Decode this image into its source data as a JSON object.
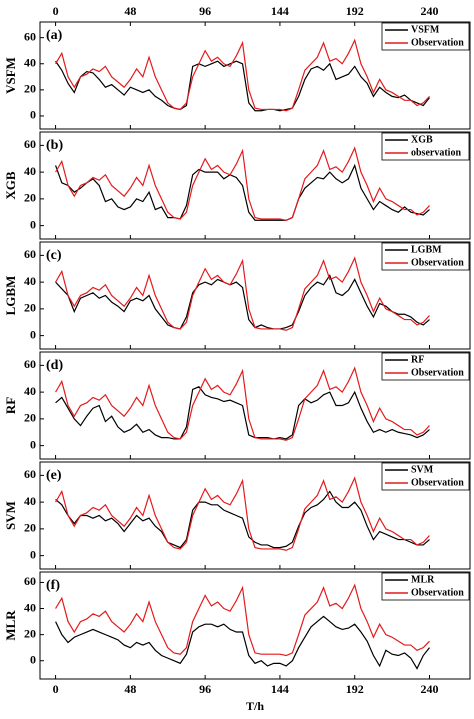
{
  "chart_data": [
    {
      "type": "line",
      "label": "(a)",
      "ylabel": "VSFM",
      "xlim": [
        -10,
        266
      ],
      "xticks": [
        0,
        48,
        96,
        144,
        192,
        240
      ],
      "ylim": [
        -10,
        72
      ],
      "yticks": [
        0,
        20,
        40,
        60
      ],
      "x": [
        0,
        4,
        8,
        12,
        16,
        20,
        24,
        28,
        32,
        36,
        40,
        44,
        48,
        52,
        56,
        60,
        64,
        68,
        72,
        76,
        80,
        84,
        88,
        92,
        96,
        100,
        104,
        108,
        112,
        116,
        120,
        124,
        128,
        132,
        136,
        140,
        144,
        148,
        152,
        156,
        160,
        164,
        168,
        172,
        176,
        180,
        184,
        188,
        192,
        196,
        200,
        204,
        208,
        212,
        216,
        220,
        224,
        228,
        232,
        236,
        240
      ],
      "series": [
        {
          "name": "VSFM",
          "color": "#000000",
          "values": [
            42,
            35,
            25,
            18,
            30,
            34,
            33,
            28,
            22,
            24,
            20,
            16,
            22,
            20,
            18,
            20,
            15,
            12,
            8,
            6,
            5,
            8,
            38,
            40,
            38,
            40,
            42,
            38,
            40,
            42,
            40,
            10,
            4,
            4,
            5,
            5,
            4,
            5,
            6,
            15,
            28,
            36,
            38,
            35,
            40,
            28,
            30,
            32,
            38,
            30,
            25,
            15,
            22,
            18,
            15,
            14,
            16,
            12,
            10,
            8,
            14
          ]
        },
        {
          "name": "Observation",
          "color": "#e41a1c",
          "values": [
            40,
            48,
            30,
            22,
            30,
            32,
            36,
            34,
            38,
            30,
            26,
            22,
            28,
            36,
            30,
            45,
            30,
            20,
            10,
            6,
            5,
            10,
            30,
            40,
            50,
            42,
            45,
            40,
            38,
            46,
            56,
            20,
            6,
            5,
            5,
            5,
            5,
            4,
            6,
            20,
            35,
            40,
            45,
            56,
            42,
            44,
            40,
            48,
            58,
            40,
            30,
            18,
            28,
            20,
            18,
            15,
            12,
            12,
            8,
            10,
            15
          ]
        }
      ]
    },
    {
      "type": "line",
      "label": "(b)",
      "ylabel": "XGB",
      "xlim": [
        -10,
        266
      ],
      "xticks": [
        0,
        48,
        96,
        144,
        192,
        240
      ],
      "ylim": [
        -10,
        70
      ],
      "yticks": [
        0,
        20,
        40,
        60
      ],
      "x": [
        0,
        4,
        8,
        12,
        16,
        20,
        24,
        28,
        32,
        36,
        40,
        44,
        48,
        52,
        56,
        60,
        64,
        68,
        72,
        76,
        80,
        84,
        88,
        92,
        96,
        100,
        104,
        108,
        112,
        116,
        120,
        124,
        128,
        132,
        136,
        140,
        144,
        148,
        152,
        156,
        160,
        164,
        168,
        172,
        176,
        180,
        184,
        188,
        192,
        196,
        200,
        204,
        208,
        212,
        216,
        220,
        224,
        228,
        232,
        236,
        240
      ],
      "series": [
        {
          "name": "XGB",
          "color": "#000000",
          "values": [
            45,
            32,
            30,
            25,
            28,
            32,
            35,
            30,
            18,
            20,
            14,
            12,
            14,
            20,
            18,
            25,
            12,
            14,
            6,
            6,
            5,
            15,
            38,
            42,
            40,
            40,
            40,
            35,
            38,
            36,
            30,
            10,
            4,
            4,
            4,
            4,
            4,
            4,
            6,
            20,
            28,
            32,
            36,
            35,
            40,
            35,
            32,
            35,
            45,
            28,
            20,
            12,
            18,
            15,
            12,
            10,
            14,
            10,
            9,
            8,
            12
          ]
        },
        {
          "name": "observation",
          "color": "#e41a1c",
          "values": [
            40,
            48,
            30,
            22,
            30,
            32,
            36,
            34,
            38,
            30,
            26,
            22,
            28,
            36,
            30,
            45,
            30,
            20,
            10,
            6,
            5,
            10,
            30,
            40,
            50,
            42,
            45,
            40,
            38,
            46,
            56,
            20,
            6,
            5,
            5,
            5,
            5,
            4,
            6,
            20,
            35,
            40,
            45,
            56,
            42,
            44,
            40,
            48,
            58,
            40,
            30,
            18,
            28,
            20,
            18,
            15,
            12,
            12,
            8,
            10,
            15
          ]
        }
      ]
    },
    {
      "type": "line",
      "label": "(c)",
      "ylabel": "LGBM",
      "xlim": [
        -10,
        266
      ],
      "xticks": [
        0,
        48,
        96,
        144,
        192,
        240
      ],
      "ylim": [
        -10,
        70
      ],
      "yticks": [
        0,
        20,
        40,
        60
      ],
      "x": [
        0,
        4,
        8,
        12,
        16,
        20,
        24,
        28,
        32,
        36,
        40,
        44,
        48,
        52,
        56,
        60,
        64,
        68,
        72,
        76,
        80,
        84,
        88,
        92,
        96,
        100,
        104,
        108,
        112,
        116,
        120,
        124,
        128,
        132,
        136,
        140,
        144,
        148,
        152,
        156,
        160,
        164,
        168,
        172,
        176,
        180,
        184,
        188,
        192,
        196,
        200,
        204,
        208,
        212,
        216,
        220,
        224,
        228,
        232,
        236,
        240
      ],
      "series": [
        {
          "name": "LGBM",
          "color": "#000000",
          "values": [
            40,
            35,
            30,
            18,
            28,
            30,
            32,
            28,
            30,
            25,
            22,
            18,
            26,
            28,
            26,
            30,
            20,
            14,
            8,
            6,
            5,
            14,
            32,
            38,
            40,
            38,
            42,
            40,
            38,
            40,
            36,
            12,
            6,
            8,
            6,
            5,
            5,
            6,
            8,
            18,
            30,
            36,
            40,
            38,
            45,
            32,
            30,
            34,
            42,
            32,
            22,
            14,
            24,
            22,
            18,
            16,
            16,
            14,
            10,
            8,
            12
          ]
        },
        {
          "name": "Observation",
          "color": "#e41a1c",
          "values": [
            40,
            48,
            30,
            22,
            30,
            32,
            36,
            34,
            38,
            30,
            26,
            22,
            28,
            36,
            30,
            45,
            30,
            20,
            10,
            6,
            5,
            10,
            30,
            40,
            50,
            42,
            45,
            40,
            38,
            46,
            56,
            20,
            6,
            5,
            5,
            5,
            5,
            4,
            6,
            20,
            35,
            40,
            45,
            56,
            42,
            44,
            40,
            48,
            58,
            40,
            30,
            18,
            28,
            20,
            18,
            15,
            12,
            12,
            8,
            10,
            15
          ]
        }
      ]
    },
    {
      "type": "line",
      "label": "(d)",
      "ylabel": "RF",
      "xlim": [
        -10,
        266
      ],
      "xticks": [
        0,
        48,
        96,
        144,
        192,
        240
      ],
      "ylim": [
        -10,
        70
      ],
      "yticks": [
        0,
        20,
        40,
        60
      ],
      "x": [
        0,
        4,
        8,
        12,
        16,
        20,
        24,
        28,
        32,
        36,
        40,
        44,
        48,
        52,
        56,
        60,
        64,
        68,
        72,
        76,
        80,
        84,
        88,
        92,
        96,
        100,
        104,
        108,
        112,
        116,
        120,
        124,
        128,
        132,
        136,
        140,
        144,
        148,
        152,
        156,
        160,
        164,
        168,
        172,
        176,
        180,
        184,
        188,
        192,
        196,
        200,
        204,
        208,
        212,
        216,
        220,
        224,
        228,
        232,
        236,
        240
      ],
      "series": [
        {
          "name": "RF",
          "color": "#000000",
          "values": [
            32,
            36,
            28,
            20,
            15,
            22,
            28,
            30,
            18,
            22,
            14,
            10,
            12,
            16,
            10,
            12,
            8,
            6,
            6,
            5,
            5,
            14,
            42,
            44,
            38,
            36,
            35,
            33,
            34,
            32,
            30,
            8,
            6,
            6,
            6,
            5,
            6,
            5,
            8,
            30,
            35,
            32,
            34,
            38,
            40,
            30,
            30,
            32,
            40,
            28,
            18,
            10,
            12,
            10,
            12,
            10,
            9,
            8,
            6,
            8,
            12
          ]
        },
        {
          "name": "Observation",
          "color": "#e41a1c",
          "values": [
            40,
            48,
            30,
            22,
            30,
            32,
            36,
            34,
            38,
            30,
            26,
            22,
            28,
            36,
            30,
            45,
            30,
            20,
            10,
            6,
            5,
            10,
            30,
            40,
            50,
            42,
            45,
            40,
            38,
            46,
            56,
            20,
            6,
            5,
            5,
            5,
            5,
            4,
            6,
            20,
            35,
            40,
            45,
            56,
            42,
            44,
            40,
            48,
            58,
            40,
            30,
            18,
            28,
            20,
            18,
            15,
            12,
            12,
            8,
            10,
            15
          ]
        }
      ]
    },
    {
      "type": "line",
      "label": "(e)",
      "ylabel": "SVM",
      "xlim": [
        -10,
        266
      ],
      "xticks": [
        0,
        48,
        96,
        144,
        192,
        240
      ],
      "ylim": [
        -10,
        70
      ],
      "yticks": [
        0,
        20,
        40,
        60
      ],
      "x": [
        0,
        4,
        8,
        12,
        16,
        20,
        24,
        28,
        32,
        36,
        40,
        44,
        48,
        52,
        56,
        60,
        64,
        68,
        72,
        76,
        80,
        84,
        88,
        92,
        96,
        100,
        104,
        108,
        112,
        116,
        120,
        124,
        128,
        132,
        136,
        140,
        144,
        148,
        152,
        156,
        160,
        164,
        168,
        172,
        176,
        180,
        184,
        188,
        192,
        196,
        200,
        204,
        208,
        212,
        216,
        220,
        224,
        228,
        232,
        236,
        240
      ],
      "series": [
        {
          "name": "SVM",
          "color": "#000000",
          "values": [
            42,
            38,
            30,
            24,
            30,
            30,
            28,
            30,
            26,
            28,
            24,
            18,
            24,
            30,
            26,
            28,
            22,
            18,
            10,
            8,
            6,
            12,
            34,
            40,
            40,
            38,
            38,
            34,
            32,
            30,
            28,
            14,
            10,
            8,
            8,
            6,
            6,
            7,
            10,
            22,
            32,
            36,
            38,
            42,
            48,
            40,
            36,
            36,
            40,
            34,
            22,
            12,
            18,
            16,
            14,
            12,
            12,
            10,
            8,
            8,
            12
          ]
        },
        {
          "name": "Observation",
          "color": "#e41a1c",
          "values": [
            40,
            48,
            30,
            22,
            30,
            32,
            36,
            34,
            38,
            30,
            26,
            22,
            28,
            36,
            30,
            45,
            30,
            20,
            10,
            6,
            5,
            10,
            30,
            40,
            50,
            42,
            45,
            40,
            38,
            46,
            56,
            20,
            6,
            5,
            5,
            5,
            5,
            4,
            6,
            20,
            35,
            40,
            45,
            56,
            42,
            44,
            40,
            48,
            58,
            40,
            30,
            18,
            28,
            20,
            18,
            15,
            12,
            12,
            8,
            10,
            15
          ]
        }
      ]
    },
    {
      "type": "line",
      "label": "(f)",
      "ylabel": "MLR",
      "xlabel": "T/h",
      "xlim": [
        -10,
        266
      ],
      "xticks": [
        0,
        48,
        96,
        144,
        192,
        240
      ],
      "ylim": [
        -14,
        68
      ],
      "yticks": [
        0,
        20,
        40,
        60
      ],
      "x": [
        0,
        4,
        8,
        12,
        16,
        20,
        24,
        28,
        32,
        36,
        40,
        44,
        48,
        52,
        56,
        60,
        64,
        68,
        72,
        76,
        80,
        84,
        88,
        92,
        96,
        100,
        104,
        108,
        112,
        116,
        120,
        124,
        128,
        132,
        136,
        140,
        144,
        148,
        152,
        156,
        160,
        164,
        168,
        172,
        176,
        180,
        184,
        188,
        192,
        196,
        200,
        204,
        208,
        212,
        216,
        220,
        224,
        228,
        232,
        236,
        240
      ],
      "series": [
        {
          "name": "MLR",
          "color": "#000000",
          "values": [
            30,
            20,
            14,
            18,
            20,
            22,
            24,
            22,
            20,
            18,
            16,
            12,
            10,
            14,
            12,
            14,
            8,
            4,
            2,
            0,
            -2,
            5,
            22,
            26,
            28,
            28,
            26,
            28,
            24,
            22,
            22,
            4,
            -2,
            0,
            -4,
            -2,
            -2,
            -4,
            0,
            10,
            18,
            26,
            30,
            34,
            30,
            26,
            24,
            25,
            28,
            22,
            15,
            4,
            -4,
            8,
            5,
            4,
            6,
            2,
            -6,
            4,
            10
          ]
        },
        {
          "name": "Observation",
          "color": "#e41a1c",
          "values": [
            40,
            48,
            30,
            22,
            30,
            32,
            36,
            34,
            38,
            30,
            26,
            22,
            28,
            36,
            30,
            45,
            30,
            20,
            10,
            6,
            5,
            10,
            30,
            40,
            50,
            42,
            45,
            40,
            38,
            46,
            56,
            20,
            6,
            5,
            5,
            5,
            5,
            4,
            6,
            20,
            35,
            40,
            45,
            56,
            42,
            44,
            40,
            48,
            58,
            40,
            30,
            18,
            28,
            20,
            18,
            15,
            12,
            12,
            8,
            10,
            15
          ]
        }
      ]
    }
  ]
}
